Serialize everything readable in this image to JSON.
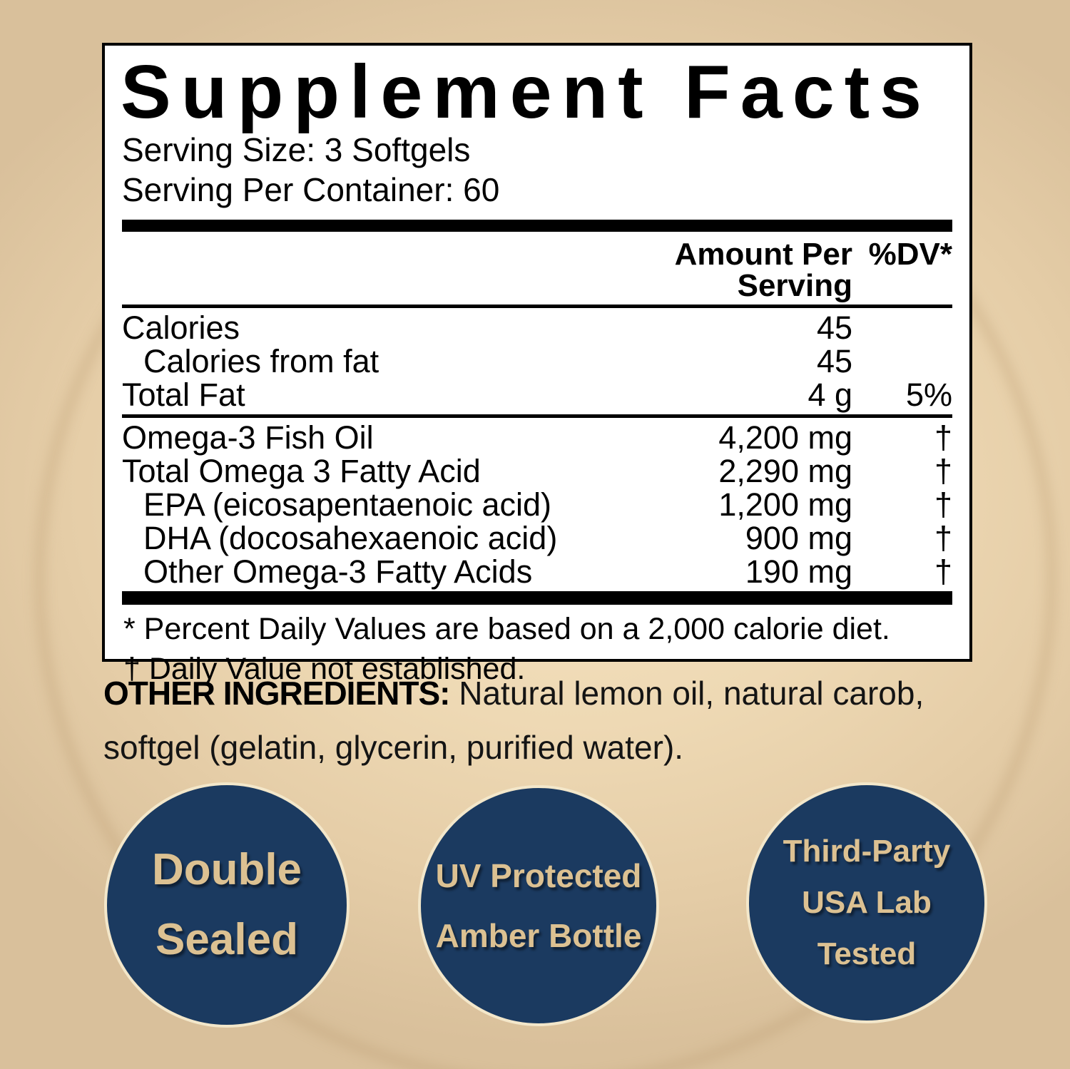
{
  "panel": {
    "title": "Supplement Facts",
    "serving_size": "Serving Size: 3 Softgels",
    "serving_per_container": "Serving Per Container: 60",
    "header": {
      "amount": "Amount Per Serving",
      "dv": "%DV*"
    },
    "rows": [
      {
        "name": "Calories",
        "amount": "45",
        "dv": ""
      },
      {
        "name": "Calories from fat",
        "amount": "45",
        "dv": ""
      },
      {
        "name": "Total Fat",
        "amount": "4 g",
        "dv": "5%"
      },
      {
        "name": "Omega-3 Fish Oil",
        "amount": "4,200 mg",
        "dv": "†"
      },
      {
        "name": "Total Omega 3 Fatty Acid",
        "amount": "2,290 mg",
        "dv": "†"
      },
      {
        "name": "EPA (eicosapentaenoic acid)",
        "amount": "1,200 mg",
        "dv": "†"
      },
      {
        "name": "DHA (docosahexaenoic acid)",
        "amount": "900 mg",
        "dv": "†"
      },
      {
        "name": "Other Omega-3 Fatty Acids",
        "amount": "190 mg",
        "dv": "†"
      }
    ],
    "footnote_dv": "* Percent Daily Values are based on a 2,000 calorie diet.",
    "footnote_dagger": "† Daily Value not established."
  },
  "other_ingredients": {
    "label": "OTHER INGREDIENTS:",
    "text": " Natural lemon oil, natural carob, softgel (gelatin, glycerin, purified water)."
  },
  "badges": [
    {
      "lines": [
        "Double",
        "Sealed"
      ]
    },
    {
      "lines": [
        "UV Protected",
        "Amber Bottle"
      ]
    },
    {
      "lines": [
        "Third-Party",
        "USA Lab",
        "Tested"
      ]
    }
  ],
  "colors": {
    "background_tan": "#ecd7b2",
    "panel_background": "#ffffff",
    "panel_border": "#000000",
    "badge_navy": "#1b3a60",
    "badge_text_tan": "#dcc192"
  }
}
